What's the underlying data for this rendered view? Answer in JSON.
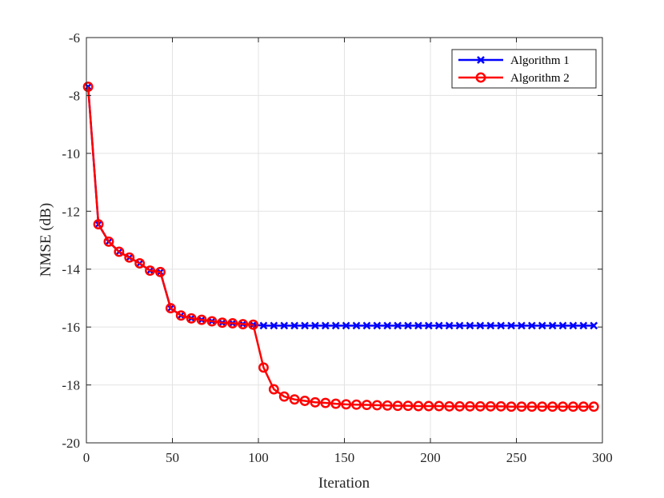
{
  "chart_data": {
    "type": "line",
    "title": "",
    "xlabel": "Iteration",
    "ylabel": "NMSE (dB)",
    "xlim": [
      0,
      300
    ],
    "ylim": [
      -20,
      -6
    ],
    "xticks": [
      0,
      50,
      100,
      150,
      200,
      250,
      300
    ],
    "yticks": [
      -20,
      -18,
      -16,
      -14,
      -12,
      -10,
      -8,
      -6
    ],
    "xtick_labels": [
      "0",
      "50",
      "100",
      "150",
      "200",
      "250",
      "300"
    ],
    "ytick_labels": [
      "-20",
      "-18",
      "-16",
      "-14",
      "-12",
      "-10",
      "-8",
      "-6"
    ],
    "grid": true,
    "legend_position": "top-right",
    "x": [
      1,
      7,
      13,
      19,
      25,
      31,
      37,
      43,
      49,
      55,
      61,
      67,
      73,
      79,
      85,
      91,
      97,
      103,
      109,
      115,
      121,
      127,
      133,
      139,
      145,
      151,
      157,
      163,
      169,
      175,
      181,
      187,
      193,
      199,
      205,
      211,
      217,
      223,
      229,
      235,
      241,
      247,
      253,
      259,
      265,
      271,
      277,
      283,
      289,
      295
    ],
    "series": [
      {
        "name": "Algorithm 1",
        "color": "#0000ff",
        "marker": "x",
        "values": [
          -7.7,
          -12.45,
          -13.05,
          -13.4,
          -13.6,
          -13.8,
          -14.05,
          -14.1,
          -15.35,
          -15.6,
          -15.7,
          -15.75,
          -15.8,
          -15.85,
          -15.87,
          -15.9,
          -15.92,
          -15.95,
          -15.95,
          -15.95,
          -15.95,
          -15.95,
          -15.95,
          -15.95,
          -15.95,
          -15.95,
          -15.95,
          -15.95,
          -15.95,
          -15.95,
          -15.95,
          -15.95,
          -15.95,
          -15.95,
          -15.95,
          -15.95,
          -15.95,
          -15.95,
          -15.95,
          -15.95,
          -15.95,
          -15.95,
          -15.95,
          -15.95,
          -15.95,
          -15.95,
          -15.95,
          -15.95,
          -15.95,
          -15.95
        ]
      },
      {
        "name": "Algorithm 2",
        "color": "#ff0000",
        "marker": "o",
        "values": [
          -7.7,
          -12.45,
          -13.05,
          -13.4,
          -13.6,
          -13.8,
          -14.05,
          -14.1,
          -15.35,
          -15.6,
          -15.7,
          -15.75,
          -15.8,
          -15.85,
          -15.87,
          -15.9,
          -15.92,
          -17.4,
          -18.15,
          -18.4,
          -18.5,
          -18.55,
          -18.6,
          -18.62,
          -18.65,
          -18.67,
          -18.68,
          -18.69,
          -18.7,
          -18.71,
          -18.72,
          -18.72,
          -18.73,
          -18.73,
          -18.73,
          -18.74,
          -18.74,
          -18.74,
          -18.74,
          -18.74,
          -18.74,
          -18.75,
          -18.75,
          -18.75,
          -18.75,
          -18.75,
          -18.75,
          -18.75,
          -18.75,
          -18.75
        ]
      }
    ]
  }
}
